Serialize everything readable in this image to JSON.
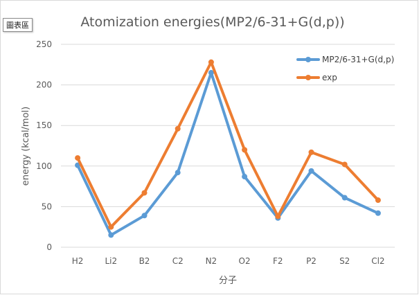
{
  "chart_area_label": "圖表區",
  "chart_data": {
    "type": "line",
    "title": "Atomization energies(MP2/6-31+G(d,p))",
    "xlabel": "分子",
    "ylabel": "energy (kcal/mol)",
    "categories": [
      "H2",
      "Li2",
      "B2",
      "C2",
      "N2",
      "O2",
      "F2",
      "P2",
      "S2",
      "Cl2"
    ],
    "ylim": [
      0,
      250
    ],
    "yticks": [
      0,
      50,
      100,
      150,
      200,
      250
    ],
    "grid": true,
    "legend_position": "top-right",
    "series": [
      {
        "name": "MP2/6-31+G(d,p)",
        "color": "#5b9bd5",
        "values": [
          101,
          15,
          39,
          92,
          215,
          87,
          36,
          94,
          61,
          42
        ]
      },
      {
        "name": "exp",
        "color": "#ed7d31",
        "values": [
          110,
          25,
          67,
          146,
          228,
          120,
          38,
          117,
          102,
          58
        ]
      }
    ]
  }
}
